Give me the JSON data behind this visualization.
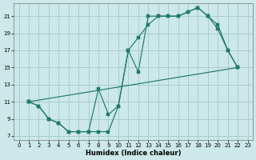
{
  "xlabel": "Humidex (Indice chaleur)",
  "bg_color": "#cce8e8",
  "grid_color": "#aacccc",
  "line_color": "#1f7a68",
  "xlim": [
    -0.5,
    23.5
  ],
  "ylim": [
    6.5,
    22.5
  ],
  "xticks": [
    0,
    1,
    2,
    3,
    4,
    5,
    6,
    7,
    8,
    9,
    10,
    11,
    12,
    13,
    14,
    15,
    16,
    17,
    18,
    19,
    20,
    21,
    22,
    23
  ],
  "yticks": [
    7,
    9,
    11,
    13,
    15,
    17,
    19,
    21
  ],
  "curve1_x": [
    1,
    2,
    3,
    4,
    5,
    6,
    7,
    8,
    9,
    10,
    11,
    12,
    13,
    14,
    15,
    16,
    17,
    18,
    19,
    20,
    21,
    22
  ],
  "curve1_y": [
    11,
    10.5,
    9,
    8.5,
    7.5,
    7.5,
    7.5,
    12.5,
    9.5,
    10.5,
    17,
    14.5,
    21,
    21,
    21,
    21,
    21.5,
    22,
    21,
    20,
    17,
    15
  ],
  "curve2_x": [
    1,
    2,
    3,
    4,
    5,
    6,
    7,
    8,
    9,
    10,
    11,
    12,
    13,
    14,
    15,
    16,
    17,
    18,
    19,
    20,
    21,
    22
  ],
  "curve2_y": [
    11,
    10.5,
    9,
    8.5,
    7.5,
    7.5,
    7.5,
    7.5,
    7.5,
    10.5,
    17,
    18.5,
    20,
    21,
    21,
    21,
    21.5,
    22,
    21,
    19.5,
    17,
    15
  ],
  "curve3_x": [
    1,
    22
  ],
  "curve3_y": [
    11,
    15
  ]
}
